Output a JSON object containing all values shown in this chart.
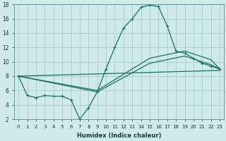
{
  "xlabel": "Humidex (Indice chaleur)",
  "bg_color": "#ceeaea",
  "grid_color": "#aacaca",
  "line_color": "#1a7060",
  "xlim": [
    -0.5,
    23.5
  ],
  "ylim": [
    2,
    18
  ],
  "yticks": [
    2,
    4,
    6,
    8,
    10,
    12,
    14,
    16,
    18
  ],
  "xticks": [
    0,
    1,
    2,
    3,
    4,
    5,
    6,
    7,
    8,
    9,
    10,
    11,
    12,
    13,
    14,
    15,
    16,
    17,
    18,
    19,
    20,
    21,
    22,
    23
  ],
  "series1_x": [
    0,
    1,
    2,
    3,
    4,
    5,
    6,
    7,
    8,
    9,
    10,
    11,
    12,
    13,
    14,
    15,
    16,
    17,
    18,
    19,
    20,
    21,
    22,
    23
  ],
  "series1_y": [
    8.0,
    5.3,
    5.0,
    5.3,
    5.2,
    5.2,
    4.7,
    2.0,
    3.6,
    5.8,
    9.0,
    12.0,
    14.7,
    16.0,
    17.6,
    17.9,
    17.7,
    15.0,
    11.5,
    11.2,
    10.5,
    9.8,
    9.4,
    9.0
  ],
  "series2_x": [
    0,
    9,
    15,
    19,
    22,
    23
  ],
  "series2_y": [
    8.0,
    6.0,
    10.5,
    11.5,
    10.3,
    9.0
  ],
  "series3_x": [
    0,
    9,
    15,
    19,
    22,
    23
  ],
  "series3_y": [
    8.0,
    5.8,
    9.8,
    10.8,
    9.6,
    9.0
  ],
  "series4_x": [
    0,
    23
  ],
  "series4_y": [
    8.0,
    8.8
  ]
}
